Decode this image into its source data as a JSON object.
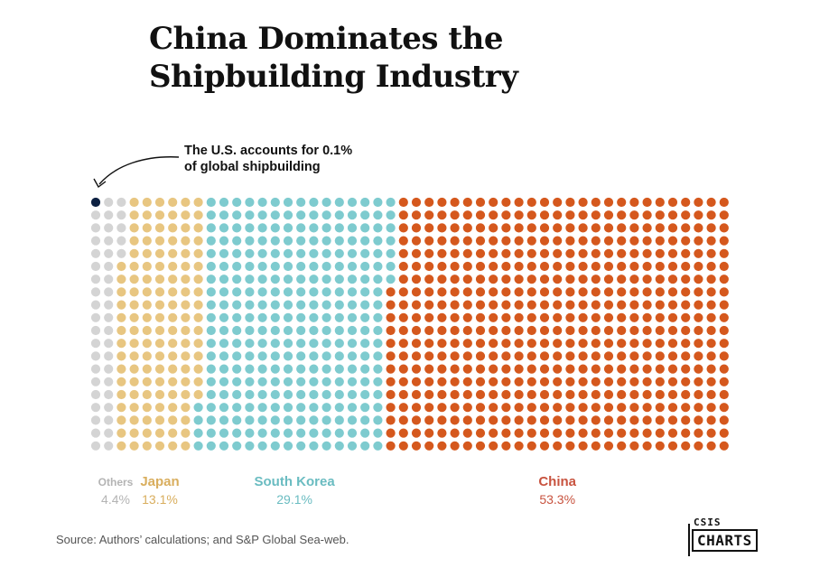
{
  "header": {
    "title_line1": "China Dominates the",
    "title_line2": "Shipbuilding Industry"
  },
  "annotation": {
    "line1": "The U.S. accounts for 0.1%",
    "line2": "of global shipbuilding"
  },
  "chart_data": {
    "type": "waffle",
    "title": "China Dominates the Shipbuilding Industry",
    "grid": {
      "rows": 20,
      "columns": 50,
      "total_dots": 1000,
      "fill_order": "column-major from left"
    },
    "annotation": "The U.S. accounts for 0.1% of global shipbuilding",
    "series": [
      {
        "name": "U.S.",
        "label": "",
        "value": 0.1,
        "value_label": "",
        "color": "#0d2142"
      },
      {
        "name": "Others",
        "label": "Others",
        "value": 4.4,
        "value_label": "4.4%",
        "color": "#d4d4d4",
        "label_color": "#b4b4b4"
      },
      {
        "name": "Japan",
        "label": "Japan",
        "value": 13.1,
        "value_label": "13.1%",
        "color": "#e8c681",
        "label_color": "#d9ae5e"
      },
      {
        "name": "South Korea",
        "label": "South Korea",
        "value": 29.1,
        "value_label": "29.1%",
        "color": "#7ecbcf",
        "label_color": "#6abcc1"
      },
      {
        "name": "China",
        "label": "China",
        "value": 53.3,
        "value_label": "53.3%",
        "color": "#d5581d",
        "label_color": "#c8533f"
      }
    ]
  },
  "source": "Source: Authors’ calculations; and S&P Global Sea-web.",
  "logo": {
    "top": "CSIS",
    "main": "CHARTS"
  }
}
